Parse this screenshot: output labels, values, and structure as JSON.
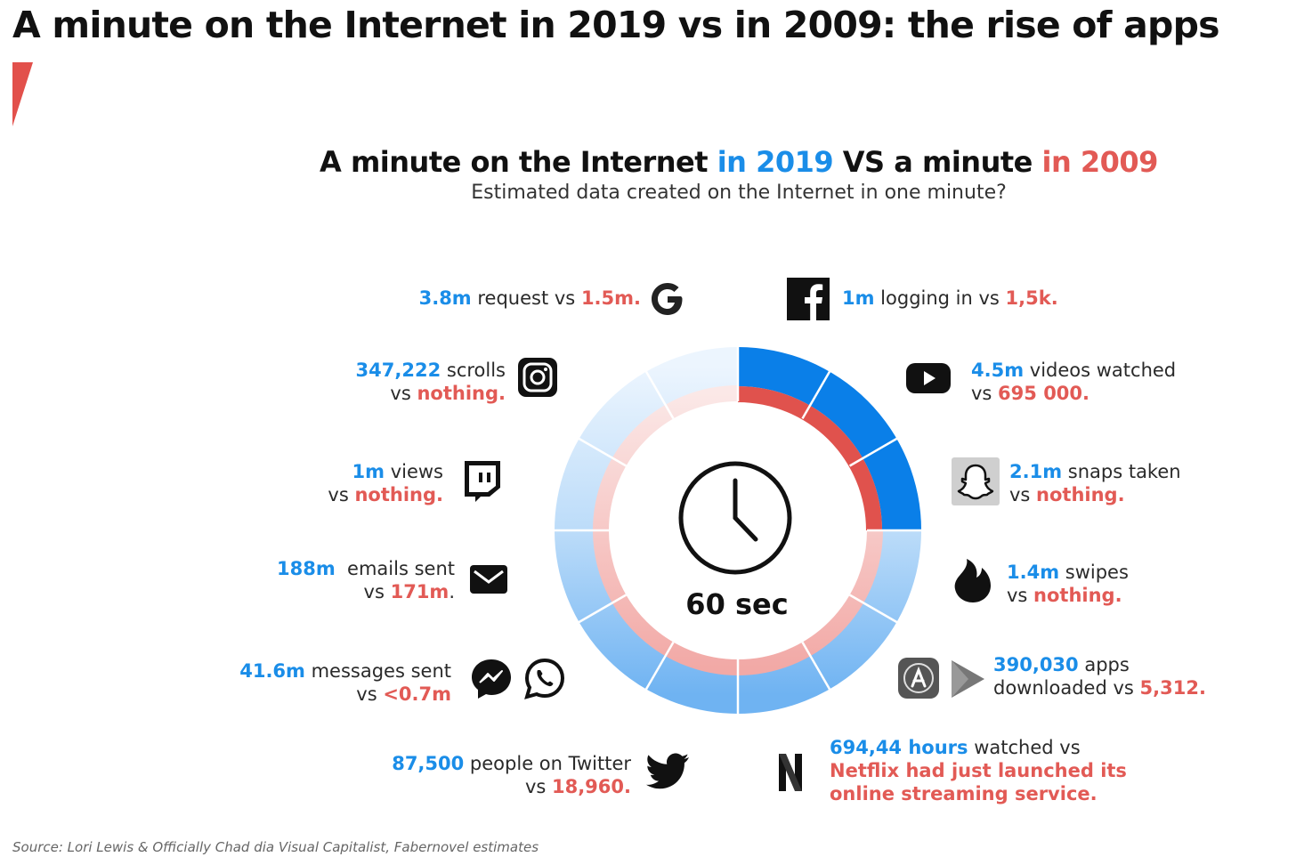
{
  "title": "A minute on the Internet in 2019 vs in 2009: the rise of apps",
  "subtitle": {
    "part1": "A minute on the Internet ",
    "part2": "in 2019",
    "part3": " VS a minute ",
    "part4": "in 2009"
  },
  "question": "Estimated data created on the Internet in one minute?",
  "center_label": "60 sec",
  "colors": {
    "blue": "#1a8de8",
    "red": "#e25a55",
    "accent": "#e2504b"
  },
  "stats": {
    "google": {
      "v2019": "3.8m",
      "text": " request vs ",
      "v2009": "1.5m.",
      "icon": "google-icon"
    },
    "facebook": {
      "v2019": "1m",
      "text": " logging in vs ",
      "v2009": "1,5k.",
      "icon": "facebook-icon"
    },
    "instagram": {
      "v2019": "347,222",
      "text1": " scrolls",
      "text2": "vs ",
      "v2009": "nothing.",
      "icon": "instagram-icon"
    },
    "youtube": {
      "v2019": "4.5m",
      "text1": " videos watched",
      "text2": "vs ",
      "v2009": "695 000.",
      "icon": "youtube-icon"
    },
    "twitch": {
      "v2019": "1m",
      "text1": " views",
      "text2": "vs ",
      "v2009": "nothing.",
      "icon": "twitch-icon"
    },
    "snapchat": {
      "v2019": "2.1m",
      "text1": " snaps taken",
      "text2": "vs ",
      "v2009": "nothing.",
      "icon": "snapchat-icon"
    },
    "email": {
      "v2019": "188m",
      "text1": "  emails sent",
      "text2": "vs ",
      "v2009": "171m",
      "tail": ".",
      "icon": "envelope-icon"
    },
    "tinder": {
      "v2019": "1.4m",
      "text1": " swipes",
      "text2": "vs ",
      "v2009": "nothing.",
      "icon": "tinder-icon"
    },
    "messaging": {
      "v2019": "41.6m",
      "text1": " messages sent",
      "text2": "vs ",
      "v2009": "<0.7m",
      "icons": [
        "messenger-icon",
        "whatsapp-icon"
      ]
    },
    "apps": {
      "v2019": "390,030",
      "text1": " apps",
      "text2": "downloaded vs ",
      "v2009": "5,312.",
      "icons": [
        "app-store-icon",
        "play-store-icon"
      ]
    },
    "twitter": {
      "v2019": "87,500",
      "text1": " people on Twitter",
      "text2": "vs ",
      "v2009": "18,960.",
      "icon": "twitter-icon"
    },
    "netflix": {
      "v2019": "694,44 hours",
      "text1": " watched vs",
      "line2": "Netflix had just launched its",
      "line3": "online streaming service.",
      "icon": "netflix-icon"
    }
  },
  "source": "Source: Lori Lewis & Officially Chad dia Visual Capitalist, Fabernovel estimates"
}
